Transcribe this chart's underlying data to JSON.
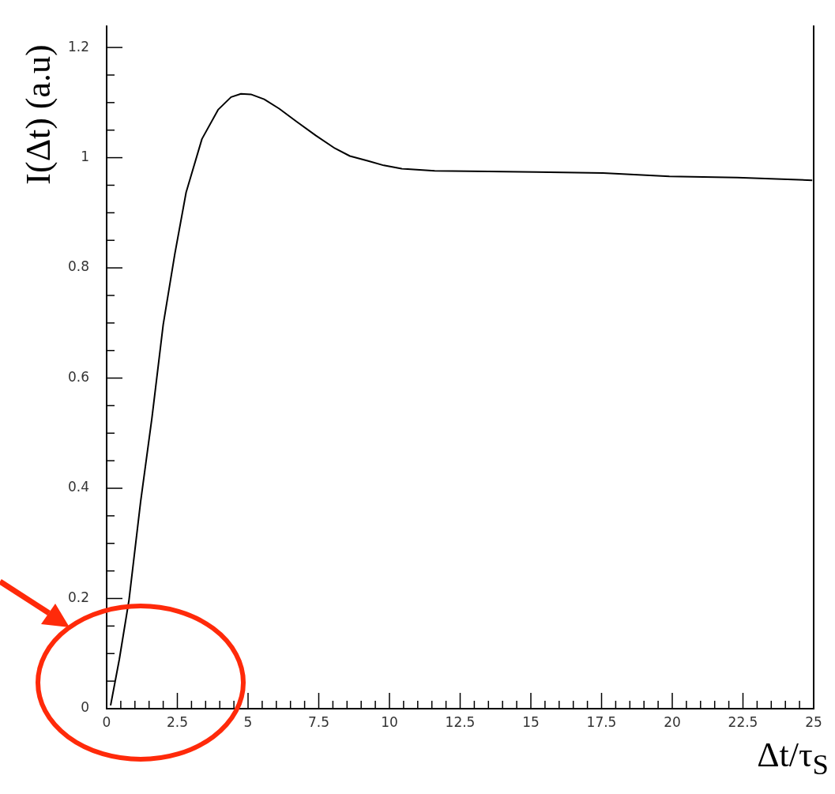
{
  "chart_data": {
    "type": "line",
    "xlabel": "Δt/τ$_{S}$",
    "ylabel": "I(Δt) (a.u)",
    "xlim": [
      0,
      25
    ],
    "ylim": [
      0,
      1.24
    ],
    "xticks": [
      0,
      {
        "value": 0.5,
        "label": null
      },
      {
        "value": 1,
        "label": null
      },
      {
        "value": 1.5,
        "label": null
      },
      {
        "value": 2,
        "label": null
      },
      2.5,
      {
        "value": 3,
        "label": null
      },
      {
        "value": 3.5,
        "label": null
      },
      {
        "value": 4,
        "label": null
      },
      {
        "value": 4.5,
        "label": null
      },
      5,
      {
        "value": 5.5,
        "label": null
      },
      {
        "value": 6,
        "label": null
      },
      {
        "value": 6.5,
        "label": null
      },
      {
        "value": 7,
        "label": null
      },
      7.5,
      {
        "value": 8,
        "label": null
      },
      {
        "value": 8.5,
        "label": null
      },
      {
        "value": 9,
        "label": null
      },
      {
        "value": 9.5,
        "label": null
      },
      10,
      {
        "value": 10.5,
        "label": null
      },
      {
        "value": 11,
        "label": null
      },
      {
        "value": 11.5,
        "label": null
      },
      {
        "value": 12,
        "label": null
      },
      12.5,
      {
        "value": 13,
        "label": null
      },
      {
        "value": 13.5,
        "label": null
      },
      {
        "value": 14,
        "label": null
      },
      {
        "value": 14.5,
        "label": null
      },
      15,
      {
        "value": 15.5,
        "label": null
      },
      {
        "value": 16,
        "label": null
      },
      {
        "value": 16.5,
        "label": null
      },
      {
        "value": 17,
        "label": null
      },
      17.5,
      {
        "value": 18,
        "label": null
      },
      {
        "value": 18.5,
        "label": null
      },
      {
        "value": 19,
        "label": null
      },
      {
        "value": 19.5,
        "label": null
      },
      20,
      {
        "value": 20.5,
        "label": null
      },
      {
        "value": 21,
        "label": null
      },
      {
        "value": 21.5,
        "label": null
      },
      {
        "value": 22,
        "label": null
      },
      22.5,
      {
        "value": 23,
        "label": null
      },
      {
        "value": 23.5,
        "label": null
      },
      {
        "value": 24,
        "label": null
      },
      {
        "value": 24.5,
        "label": null
      },
      25
    ],
    "yticks": [
      0,
      {
        "value": 0.05,
        "label": null
      },
      {
        "value": 0.1,
        "label": null
      },
      {
        "value": 0.15,
        "label": null
      },
      0.2,
      {
        "value": 0.25,
        "label": null
      },
      {
        "value": 0.3,
        "label": null
      },
      {
        "value": 0.35,
        "label": null
      },
      0.4,
      {
        "value": 0.45,
        "label": null
      },
      {
        "value": 0.5,
        "label": null
      },
      {
        "value": 0.55,
        "label": null
      },
      0.6,
      {
        "value": 0.65,
        "label": null
      },
      {
        "value": 0.7,
        "label": null
      },
      {
        "value": 0.75,
        "label": null
      },
      0.8,
      {
        "value": 0.85,
        "label": null
      },
      {
        "value": 0.9,
        "label": null
      },
      {
        "value": 0.95,
        "label": null
      },
      1,
      {
        "value": 1.05,
        "label": null
      },
      {
        "value": 1.1,
        "label": null
      },
      {
        "value": 1.15,
        "label": null
      },
      1.2
    ],
    "grid": false,
    "legend": false,
    "marker": "none",
    "line_style": "solid",
    "series": [
      {
        "color": "#000000",
        "x": [
          0.14,
          0.45,
          0.79,
          1.2,
          1.6,
          2.0,
          2.41,
          2.81,
          3.37,
          3.94,
          4.4,
          4.75,
          5.1,
          5.57,
          6.1,
          6.7,
          7.4,
          8.07,
          8.6,
          9.25,
          9.8,
          10.43,
          11.6,
          13.5,
          15.2,
          17.55,
          19.9,
          22.3,
          24.95
        ],
        "values": [
          0.006,
          0.09,
          0.197,
          0.375,
          0.527,
          0.697,
          0.825,
          0.937,
          1.034,
          1.087,
          1.11,
          1.116,
          1.115,
          1.106,
          1.089,
          1.066,
          1.04,
          1.017,
          1.003,
          0.994,
          0.986,
          0.98,
          0.976,
          0.975,
          0.974,
          0.972,
          0.966,
          0.964,
          0.959
        ]
      }
    ]
  }
}
